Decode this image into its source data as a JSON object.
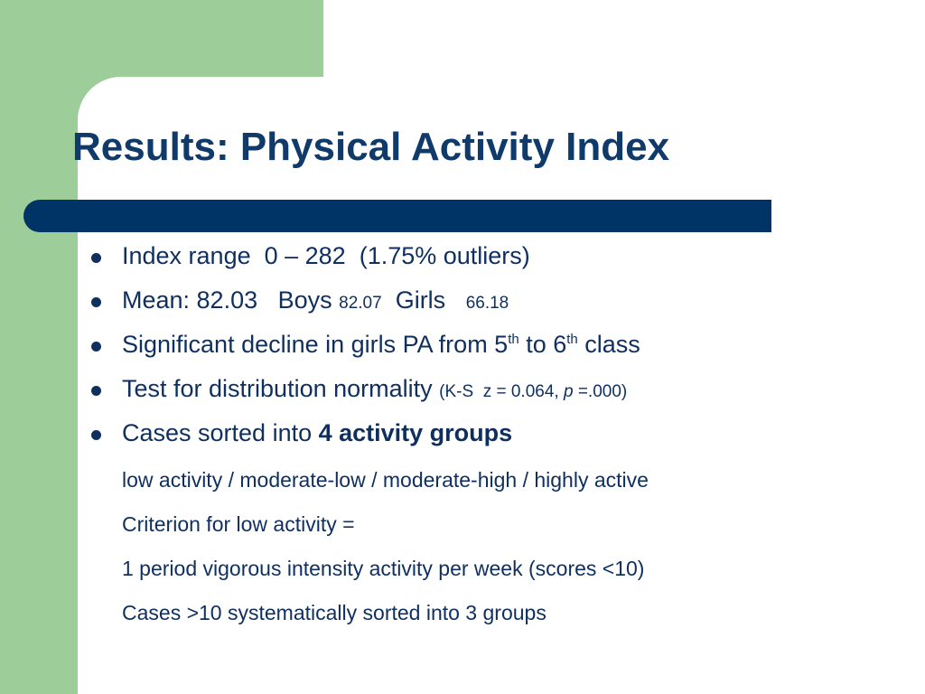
{
  "slide": {
    "title": "Results: Physical Activity Index",
    "bullets": {
      "b1": {
        "text": "Index range  0 – 282  (1.75% outliers)"
      },
      "b2": {
        "mean": "Mean: 82.03   Boys ",
        "boys_value": "82.07",
        "girls_label": "  Girls   ",
        "girls_value": "66.18"
      },
      "b3": {
        "part1": "Significant decline in girls PA from 5",
        "sup1": "th",
        "part2": " to 6",
        "sup2": "th",
        "part3": " class"
      },
      "b4": {
        "main": "Test for distribution normality ",
        "stats_a": "(K-S  z = 0.064, ",
        "stats_p": "p",
        "stats_b": " =.000)"
      },
      "b5": {
        "main": "Cases sorted into ",
        "bold": "4 activity groups"
      }
    },
    "sublines": {
      "s1": "low activity / moderate-low / moderate-high / highly active",
      "s2": "Criterion for low activity =",
      "s3": "1 period vigorous intensity activity per week (scores <10)",
      "s4": "Cases >10 systematically sorted into 3  groups"
    }
  }
}
